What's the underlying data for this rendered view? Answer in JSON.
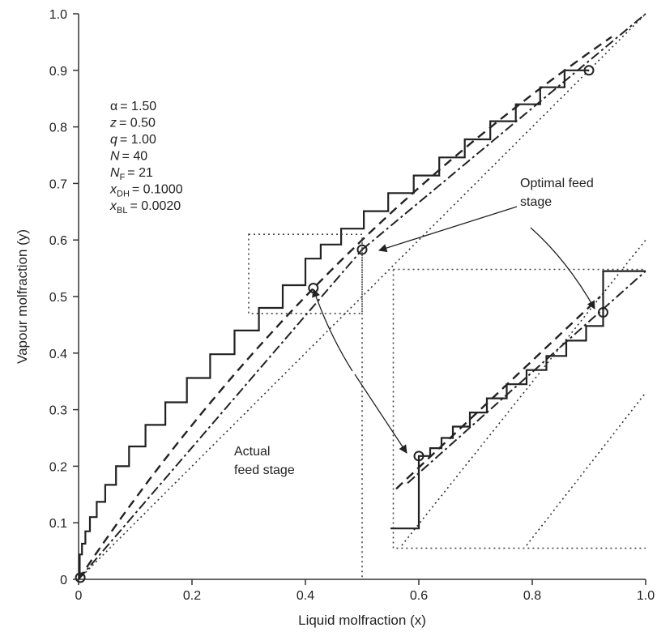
{
  "chart_data": {
    "type": "line",
    "xlabel": "Liquid molfraction (x)",
    "ylabel": "Vapour molfraction (y)",
    "xlim": [
      0,
      1.0
    ],
    "ylim": [
      0,
      1.0
    ],
    "xticks": [
      "0",
      "0.2",
      "0.4",
      "0.6",
      "0.8",
      "1.0"
    ],
    "yticks": [
      "0",
      "0.1",
      "0.2",
      "0.3",
      "0.4",
      "0.5",
      "0.6",
      "0.7",
      "0.8",
      "0.9",
      "1.0"
    ],
    "xtick_values": [
      0,
      0.2,
      0.4,
      0.6,
      0.8,
      1.0
    ],
    "ytick_values": [
      0,
      0.1,
      0.2,
      0.3,
      0.4,
      0.5,
      0.6,
      0.7,
      0.8,
      0.9,
      1.0
    ],
    "grid": false,
    "parameters": [
      {
        "sym": "α",
        "sub": "",
        "value": "= 1.50",
        "italic": false
      },
      {
        "sym": "z",
        "sub": "",
        "value": "= 0.50",
        "italic": true
      },
      {
        "sym": "q",
        "sub": "",
        "value": "= 1.00",
        "italic": true
      },
      {
        "sym": "N",
        "sub": "",
        "value": "= 40",
        "italic": true
      },
      {
        "sym": "N",
        "sub": "F",
        "value": "= 21",
        "italic": true
      },
      {
        "sym": "x",
        "sub": "DH",
        "value": "= 0.1000",
        "italic": true
      },
      {
        "sym": "x",
        "sub": "BL",
        "value": "= 0.0020",
        "italic": true
      }
    ],
    "annotations": {
      "optimal": [
        "Optimal feed",
        "stage"
      ],
      "actual": [
        "Actual",
        "feed stage"
      ]
    },
    "alpha": 1.5,
    "q": 1.0,
    "feed_composition": 0.5,
    "distillate_composition": 0.9,
    "bottoms_composition": 0.0,
    "series": [
      {
        "style": "dashed",
        "kind": "equilibrium"
      },
      {
        "style": "dotted",
        "kind": "diagonal"
      },
      {
        "style": "dashdot",
        "kind": "operating"
      },
      {
        "style": "solid",
        "kind": "stages"
      }
    ],
    "stage_points": [
      [
        0.9,
        0.9
      ],
      [
        0.857,
        0.9
      ],
      [
        0.857,
        0.87
      ],
      [
        0.814,
        0.87
      ],
      [
        0.814,
        0.84
      ],
      [
        0.771,
        0.84
      ],
      [
        0.771,
        0.81
      ],
      [
        0.726,
        0.81
      ],
      [
        0.726,
        0.778
      ],
      [
        0.681,
        0.778
      ],
      [
        0.681,
        0.746
      ],
      [
        0.636,
        0.746
      ],
      [
        0.636,
        0.714
      ],
      [
        0.591,
        0.714
      ],
      [
        0.591,
        0.683
      ],
      [
        0.546,
        0.683
      ],
      [
        0.546,
        0.651
      ],
      [
        0.503,
        0.651
      ],
      [
        0.503,
        0.62
      ],
      [
        0.463,
        0.62
      ],
      [
        0.463,
        0.592
      ],
      [
        0.427,
        0.592
      ],
      [
        0.427,
        0.567
      ],
      [
        0.4,
        0.567
      ],
      [
        0.4,
        0.52
      ],
      [
        0.36,
        0.52
      ],
      [
        0.36,
        0.48
      ],
      [
        0.318,
        0.48
      ],
      [
        0.318,
        0.44
      ],
      [
        0.275,
        0.44
      ],
      [
        0.275,
        0.398
      ],
      [
        0.232,
        0.398
      ],
      [
        0.232,
        0.356
      ],
      [
        0.191,
        0.356
      ],
      [
        0.191,
        0.313
      ],
      [
        0.153,
        0.313
      ],
      [
        0.153,
        0.273
      ],
      [
        0.118,
        0.273
      ],
      [
        0.118,
        0.235
      ],
      [
        0.089,
        0.235
      ],
      [
        0.089,
        0.2
      ],
      [
        0.066,
        0.2
      ],
      [
        0.066,
        0.167
      ],
      [
        0.047,
        0.167
      ],
      [
        0.047,
        0.137
      ],
      [
        0.032,
        0.137
      ],
      [
        0.032,
        0.11
      ],
      [
        0.02,
        0.11
      ],
      [
        0.02,
        0.085
      ],
      [
        0.012,
        0.085
      ],
      [
        0.012,
        0.063
      ],
      [
        0.006,
        0.063
      ],
      [
        0.006,
        0.044
      ],
      [
        0.002,
        0.044
      ],
      [
        0.002,
        0.003
      ]
    ],
    "marker_points": [
      [
        0.9,
        0.9
      ],
      [
        0.5,
        0.583
      ],
      [
        0.414,
        0.515
      ],
      [
        0.003,
        0.003
      ]
    ],
    "inset": {
      "box": [
        0.3,
        0.47,
        0.5,
        0.61
      ],
      "markers": [
        [
          0.6,
          0.218
        ],
        [
          0.925,
          0.472
        ]
      ],
      "stages": [
        [
          0.55,
          0.09
        ],
        [
          0.6,
          0.09
        ],
        [
          0.6,
          0.218
        ],
        [
          0.62,
          0.218
        ],
        [
          0.62,
          0.232
        ],
        [
          0.64,
          0.232
        ],
        [
          0.64,
          0.25
        ],
        [
          0.66,
          0.25
        ],
        [
          0.66,
          0.27
        ],
        [
          0.69,
          0.27
        ],
        [
          0.69,
          0.295
        ],
        [
          0.72,
          0.295
        ],
        [
          0.72,
          0.32
        ],
        [
          0.755,
          0.32
        ],
        [
          0.755,
          0.345
        ],
        [
          0.79,
          0.345
        ],
        [
          0.79,
          0.37
        ],
        [
          0.825,
          0.37
        ],
        [
          0.825,
          0.395
        ],
        [
          0.86,
          0.395
        ],
        [
          0.86,
          0.422
        ],
        [
          0.895,
          0.422
        ],
        [
          0.895,
          0.448
        ],
        [
          0.925,
          0.448
        ],
        [
          0.925,
          0.472
        ],
        [
          0.925,
          0.545
        ],
        [
          1.0,
          0.545
        ]
      ]
    }
  }
}
